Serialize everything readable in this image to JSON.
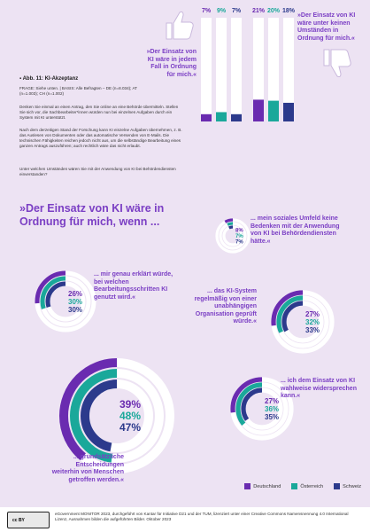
{
  "top_quote_left": "»Der Einsatz von KI wäre in jedem Fall in Ordnung für mich.«",
  "top_quote_right": "»Der Einsatz von KI wäre unter keinen Umständen in Ordnung für mich.«",
  "figure_title": "Abb. 11: KI-Akzeptanz",
  "frage": "FRAGE: Siehe unten. | BASIS: Alle Befragten – DE (n=8.034); AT (n=1.003); CH (n=1.002)",
  "intro_1": "Denken Sie einmal an einen Antrag, den Sie online an eine Behörde übermitteln. Stellen Sie sich vor, die Sachbearbeiter*innen würden nun bei einzelnen Aufgaben durch ein System mit KI unterstützt.",
  "intro_2": "Nach dem derzeitigen Stand der Forschung kann KI einzelne Aufgaben übernehmen, z. B. das Auslesen von Dokumenten oder das automatische Versenden von E-Mails. Die technischen Fähigkeiten reichen jedoch nicht aus, um die selbständige Bearbeitung eines ganzen Antrags auszuführen; auch rechtlich wäre das nicht erlaubt.",
  "intro_3": "Unter welchen Umständen wären Sie mit der Anwendung von KI bei Behördendiensten einverstanden?",
  "main_heading": "»Der Einsatz von KI wäre in Ordnung für mich, wenn ...",
  "legend": {
    "de": "Deutschland",
    "at": "Österreich",
    "ch": "Schweiz"
  },
  "footer": "eGovernment MONITOR 2023, durchgeführt von Kantar für Initiative D21 und der TUM, lizenziert unter einer Creative Commons Namensnennung 4.0 International Lizenz, Ausnahmen bilden die aufgeführten Bilder. Oktober 2023",
  "cc_badge": "cc  BY",
  "colors": {
    "de": "#6a2bb0",
    "at": "#1aa89a",
    "ch": "#2c3a8c",
    "track": "#ffffff",
    "bg": "#ede3f3"
  },
  "chart_data": [
    {
      "type": "bar",
      "categories": [
        "»Der Einsatz von KI wäre in jedem Fall in Ordnung für mich.«",
        "»Der Einsatz von KI wäre unter keinen Umständen in Ordnung für mich.«"
      ],
      "series": [
        {
          "name": "Deutschland",
          "values": [
            7,
            21
          ]
        },
        {
          "name": "Österreich",
          "values": [
            9,
            20
          ]
        },
        {
          "name": "Schweiz",
          "values": [
            7,
            18
          ]
        }
      ],
      "value_labels": [
        [
          "7%",
          "9%",
          "7%"
        ],
        [
          "21%",
          "20%",
          "18%"
        ]
      ],
      "ylim": [
        0,
        100
      ]
    },
    {
      "type": "pie",
      "items": [
        {
          "label": "... mein soziales Umfeld keine Bedenken mit der Anwendung von KI bei Behördendiensten hätte.«",
          "values": [
            8,
            7,
            7
          ],
          "value_labels": [
            "8%",
            "7%",
            "7%"
          ]
        },
        {
          "label": "... mir genau erklärt würde, bei welchen Bearbeitungsschritten KI genutzt wird.«",
          "values": [
            26,
            30,
            30
          ],
          "value_labels": [
            "26%",
            "30%",
            "30%"
          ]
        },
        {
          "label": "... das KI-System regelmäßig von einer unabhängigen Organisation geprüft würde.«",
          "values": [
            27,
            32,
            33
          ],
          "value_labels": [
            "27%",
            "32%",
            "33%"
          ]
        },
        {
          "label": "... ich dem Einsatz von KI wahlweise widersprechen kann.«",
          "values": [
            27,
            36,
            35
          ],
          "value_labels": [
            "27%",
            "36%",
            "35%"
          ]
        },
        {
          "label": "... grundsätzliche Entscheidungen weiterhin von Menschen getroffen werden.«",
          "values": [
            39,
            48,
            47
          ],
          "value_labels": [
            "39%",
            "48%",
            "47%"
          ]
        }
      ]
    }
  ]
}
